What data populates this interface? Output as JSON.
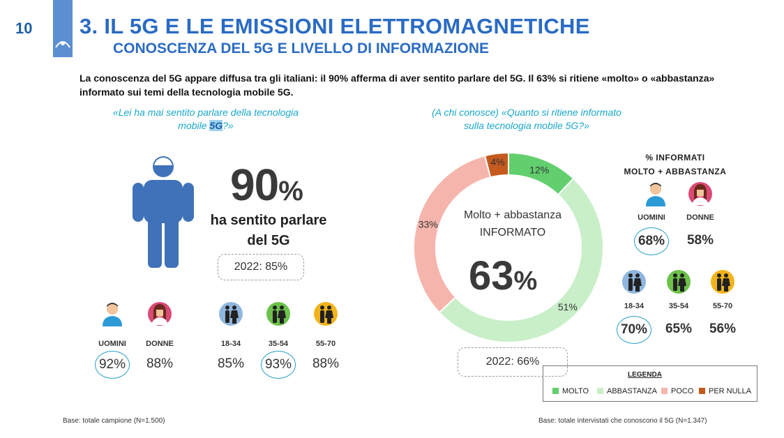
{
  "page_number": "10",
  "header": {
    "title": "3. IL 5G E LE EMISSIONI ELETTROMAGNETICHE",
    "subtitle": "CONOSCENZA DEL 5G E LIVELLO DI INFORMAZIONE"
  },
  "intro": "La conoscenza del 5G appare diffusa tra gli italiani: il 90% afferma di aver sentito parlare del 5G. Il 63% si ritiene «molto» o «abbastanza» informato sui temi della tecnologia mobile 5G.",
  "left": {
    "question_a": "«Lei ha mai sentito parlare della tecnologia",
    "question_b": "mobile ",
    "question_hl": "5G",
    "question_c": "?»",
    "big_number": "90",
    "big_pct": "%",
    "heard_line1": "ha sentito parlare",
    "heard_line2": "del 5G",
    "prev_year": "2022: 85%",
    "groups": [
      {
        "label": "UOMINI",
        "value": "92%",
        "icon": "man-icon"
      },
      {
        "label": "DONNE",
        "value": "88%",
        "icon": "woman-icon"
      },
      {
        "label": "18-34",
        "value": "85%",
        "icon": "young-couple-icon"
      },
      {
        "label": "35-54",
        "value": "93%",
        "icon": "adult-couple-icon"
      },
      {
        "label": "55-70",
        "value": "88%",
        "icon": "senior-couple-icon"
      }
    ],
    "base": "Base: totale campione (N=1.500)"
  },
  "right": {
    "question_line1": "(A chi conosce) «Quanto si ritiene informato",
    "question_line2": "sulla tecnologia mobile 5G?»",
    "center_line1": "Molto + abbastanza",
    "center_line2": "INFORMATO",
    "center_number": "63",
    "center_pct": "%",
    "prev_year": "2022: 66%",
    "pct_title_line1": "% INFORMATI",
    "pct_title_line2": "MOLTO + ABBASTANZA",
    "groups": [
      {
        "label": "UOMINI",
        "value": "68%",
        "icon": "man-icon"
      },
      {
        "label": "DONNE",
        "value": "58%",
        "icon": "woman-icon"
      },
      {
        "label": "18-34",
        "value": "70%",
        "icon": "young-couple-icon"
      },
      {
        "label": "35-54",
        "value": "65%",
        "icon": "adult-couple-icon"
      },
      {
        "label": "55-70",
        "value": "56%",
        "icon": "senior-couple-icon"
      }
    ],
    "legend_title": "LEGENDA",
    "base": "Base: totale intervistati che conoscono il 5G (N=1.347)"
  },
  "colors": {
    "brand_blue": "#2a6bc4",
    "accent_cyan": "#1aa7c9",
    "molto": "#62cf6e",
    "abbastanza": "#c9efc9",
    "poco": "#f6b5ac",
    "per_nulla": "#c55a1e"
  },
  "chart_data": {
    "type": "pie",
    "donut": true,
    "categories": [
      "MOLTO",
      "ABBASTANZA",
      "POCO",
      "PER NULLA"
    ],
    "values": [
      12,
      51,
      33,
      4
    ],
    "value_labels": [
      "12%",
      "51%",
      "33%",
      "4%"
    ],
    "colors": [
      "#62cf6e",
      "#c9efc9",
      "#f6b5ac",
      "#c55a1e"
    ],
    "legend": "bottom-right"
  }
}
